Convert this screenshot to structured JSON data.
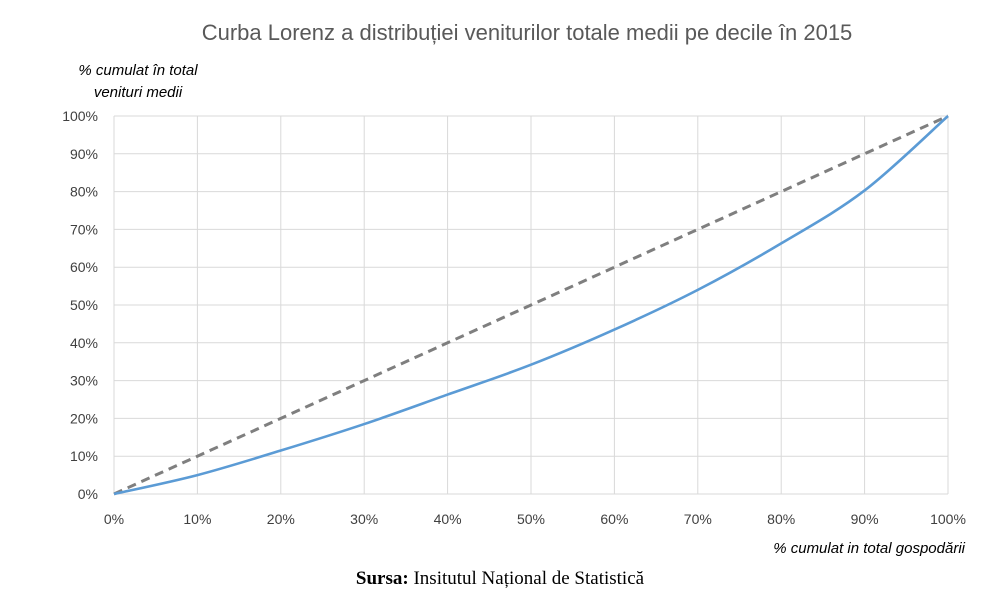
{
  "chart_data": {
    "type": "line",
    "title": "Curba Lorenz a distribuției veniturilor totale medii pe decile în 2015",
    "ylabel_line1": "% cumulat în total",
    "ylabel_line2": "venituri medii",
    "xlabel": "% cumulat in total gospodării",
    "x": [
      0,
      10,
      20,
      30,
      40,
      50,
      60,
      70,
      80,
      90,
      100
    ],
    "xtick_labels": [
      "0%",
      "10%",
      "20%",
      "30%",
      "40%",
      "50%",
      "60%",
      "70%",
      "80%",
      "90%",
      "100%"
    ],
    "ytick_labels": [
      "0%",
      "10%",
      "20%",
      "30%",
      "40%",
      "50%",
      "60%",
      "70%",
      "80%",
      "90%",
      "100%"
    ],
    "xlim": [
      0,
      100
    ],
    "ylim": [
      0,
      100
    ],
    "grid": true,
    "series": [
      {
        "values": [
          0,
          5,
          11.5,
          18.5,
          26.3,
          34.2,
          43.5,
          54,
          66.3,
          80.3,
          100
        ],
        "color": "#5b9bd5",
        "style": "solid"
      },
      {
        "values": [
          0,
          10,
          20,
          30,
          40,
          50,
          60,
          70,
          80,
          90,
          100
        ],
        "color": "#7f7f7f",
        "style": "dashed"
      }
    ]
  },
  "source": {
    "label": "Sursa:",
    "text": " Insitutul Național de Statistică"
  }
}
